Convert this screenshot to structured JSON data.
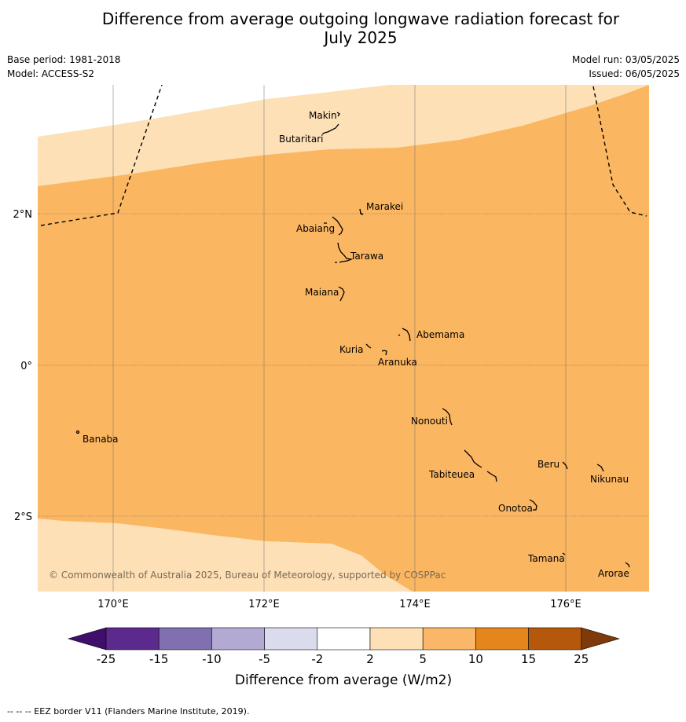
{
  "title_line1": "Difference from average outgoing longwave radiation forecast for",
  "title_line2": "July 2025",
  "base_period": "Base period: 1981-2018",
  "model": "Model: ACCESS-S2",
  "model_run": "Model run: 03/05/2025",
  "issued": "Issued: 06/05/2025",
  "copyright": "© Commonwealth of Australia 2025, Bureau of Meteorology, supported by COSPPac",
  "footer": "--  --  -- EEZ border V11 (Flanders Marine Institute, 2019).",
  "lon_ticks": [
    "170°E",
    "172°E",
    "174°E",
    "176°E"
  ],
  "lat_ticks": [
    "2°N",
    "0°",
    "2°S"
  ],
  "colorbar": {
    "label": "Difference from average (W/m2)",
    "tick_labels": [
      "-25",
      "-15",
      "-10",
      "-5",
      "-2",
      "2",
      "5",
      "10",
      "15",
      "25"
    ],
    "colors": [
      "#3f0f6b",
      "#5c2a8c",
      "#8070b0",
      "#b2aad2",
      "#dadbec",
      "#ffffff",
      "#fde0b6",
      "#f9b767",
      "#e4861c",
      "#b5580b",
      "#7e3a08"
    ]
  },
  "fill_colors": {
    "light": "#fde0b6",
    "medium": "#fbb661"
  },
  "islands": [
    "Makin",
    "Butaritari",
    "Marakei",
    "Abaiang",
    "Tarawa",
    "Maiana",
    "Abemama",
    "Kuria",
    "Aranuka",
    "Banaba",
    "Nonouti",
    "Beru",
    "Nikunau",
    "Tabiteuea",
    "Onotoa",
    "Tamana",
    "Arorae"
  ]
}
